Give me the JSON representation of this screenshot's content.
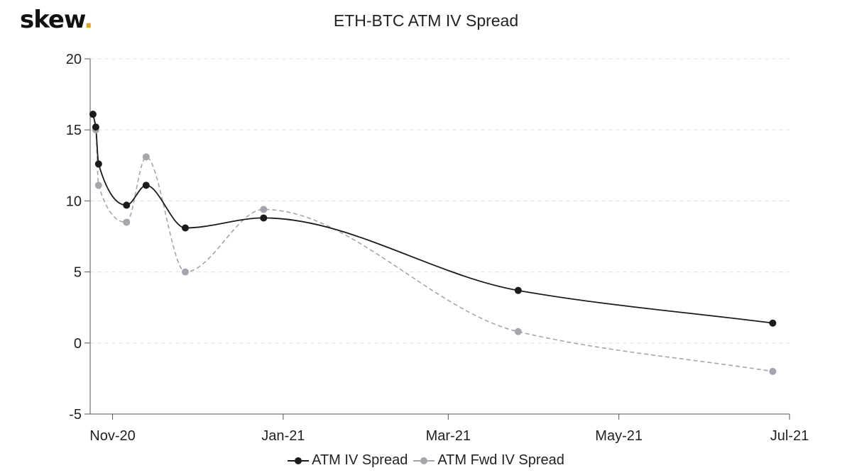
{
  "logo": {
    "text": "skew",
    "dot": "."
  },
  "colors": {
    "series1": "#1b1b1d",
    "series2": "#a3a6ab",
    "grid": "#e6e6e6",
    "axis": "#555555",
    "logo_dot": "#e8a317"
  },
  "chart_data": {
    "type": "line",
    "title": "ETH-BTC ATM IV Spread",
    "xlabel": "",
    "ylabel": "",
    "x_ticks": [
      {
        "label": "Nov-20",
        "date": "2020-11-01"
      },
      {
        "label": "Jan-21",
        "date": "2021-01-01"
      },
      {
        "label": "Mar-21",
        "date": "2021-03-01"
      },
      {
        "label": "May-21",
        "date": "2021-05-01"
      },
      {
        "label": "Jul-21",
        "date": "2021-07-01"
      }
    ],
    "xlim": [
      "2020-10-24",
      "2021-07-01"
    ],
    "ylim": [
      -5,
      20
    ],
    "y_ticks": [
      -5,
      0,
      5,
      10,
      15,
      20
    ],
    "grid": true,
    "legend": "bottom",
    "series": [
      {
        "name": "ATM IV Spread",
        "style": "solid",
        "x": [
          "2020-10-25",
          "2020-10-26",
          "2020-10-27",
          "2020-11-06",
          "2020-11-13",
          "2020-11-27",
          "2020-12-25",
          "2021-03-26",
          "2021-06-25"
        ],
        "y": [
          16.1,
          15.2,
          12.6,
          9.7,
          11.1,
          8.1,
          8.8,
          3.7,
          1.4
        ]
      },
      {
        "name": "ATM Fwd IV Spread",
        "style": "dashed",
        "x": [
          "2020-10-25",
          "2020-10-26",
          "2020-10-27",
          "2020-11-06",
          "2020-11-13",
          "2020-11-27",
          "2020-12-25",
          "2021-03-26",
          "2021-06-25"
        ],
        "y": [
          16.1,
          15.0,
          11.1,
          8.5,
          13.1,
          5.0,
          9.4,
          0.8,
          -2.0
        ]
      }
    ]
  }
}
